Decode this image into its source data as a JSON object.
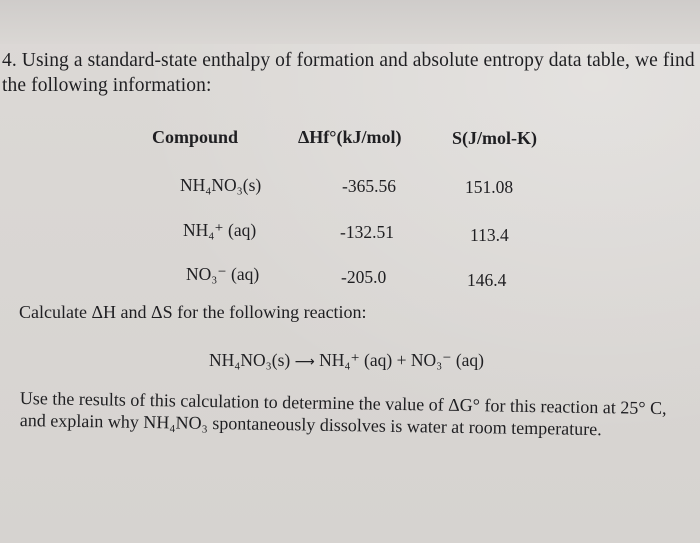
{
  "question": {
    "line1": "4. Using a standard-state enthalpy of formation and absolute entropy data table, we find",
    "line2": "the following information:"
  },
  "table": {
    "headers": {
      "compound": "Compound",
      "enthalpy": "ΔHf°(kJ/mol)",
      "entropy": "S(J/mol-K)"
    },
    "rows": [
      {
        "compound": "NH₄NO₃(s)",
        "enthalpy": "-365.56",
        "entropy": "151.08"
      },
      {
        "compound": "NH₄⁺ (aq)",
        "enthalpy": "-132.51",
        "entropy": "113.4"
      },
      {
        "compound": "NO₃⁻ (aq)",
        "enthalpy": "-205.0",
        "entropy": "146.4"
      }
    ]
  },
  "instructions": {
    "calculate": "Calculate ΔH and ΔS for the following reaction:",
    "reaction": {
      "reactant": "NH₄NO₃(s)",
      "arrow": "⟶",
      "products": "NH₄⁺ (aq) + NO₃⁻ (aq)"
    },
    "use_line1": "Use the results of this calculation to determine the value of ΔG° for this reaction at 25° C,",
    "use_line2": "and explain why NH₄NO₃ spontaneously dissolves is water at room temperature."
  }
}
